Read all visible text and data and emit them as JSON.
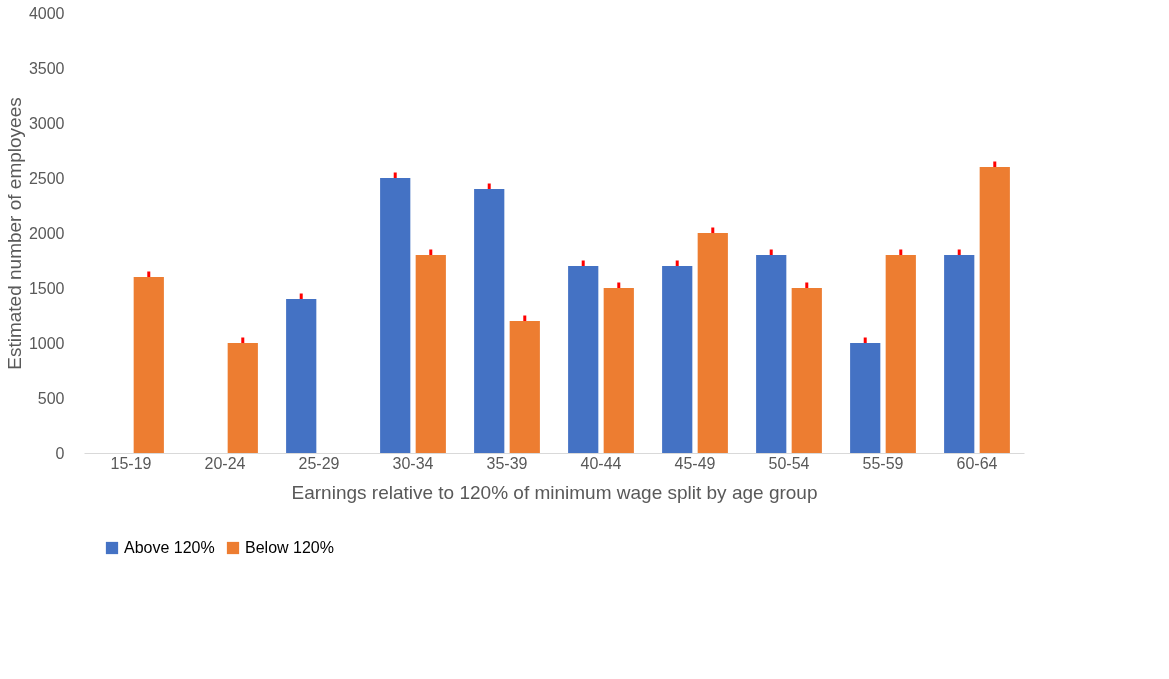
{
  "chart_data": {
    "type": "bar",
    "xlabel": "Earnings relative to 120% of minimum wage split by age group",
    "ylabel": "Estimated number of employees",
    "categories": [
      "15-19",
      "20-24",
      "25-29",
      "30-34",
      "35-39",
      "40-44",
      "45-49",
      "50-54",
      "55-59",
      "60-64"
    ],
    "series": [
      {
        "name": "Above 120%",
        "color": "#4472c4",
        "values": [
          null,
          null,
          1400,
          2500,
          2400,
          1700,
          1700,
          1800,
          1000,
          1800
        ],
        "errors": [
          null,
          null,
          [
            1400,
            1450
          ],
          [
            2500,
            2550
          ],
          [
            2400,
            2450
          ],
          [
            1700,
            1750
          ],
          [
            1700,
            1750
          ],
          [
            1800,
            1850
          ],
          [
            1000,
            1050
          ],
          [
            1800,
            1850
          ]
        ]
      },
      {
        "name": "Below 120%",
        "color": "#ed7d31",
        "values": [
          1600,
          1000,
          null,
          1800,
          1200,
          1500,
          2000,
          1500,
          1800,
          2600
        ],
        "errors": [
          [
            1600,
            1650
          ],
          [
            1000,
            1050
          ],
          null,
          [
            1800,
            1850
          ],
          [
            1200,
            1250
          ],
          [
            1500,
            1550
          ],
          [
            2000,
            2050
          ],
          [
            1500,
            1550
          ],
          [
            1800,
            1850
          ],
          [
            2600,
            2650
          ]
        ]
      }
    ],
    "ylim": [
      0,
      4000
    ],
    "yticks": [
      0,
      500,
      1000,
      1500,
      2000,
      2500,
      3000,
      3500,
      4000
    ],
    "grid": false,
    "legend": "bottom"
  }
}
